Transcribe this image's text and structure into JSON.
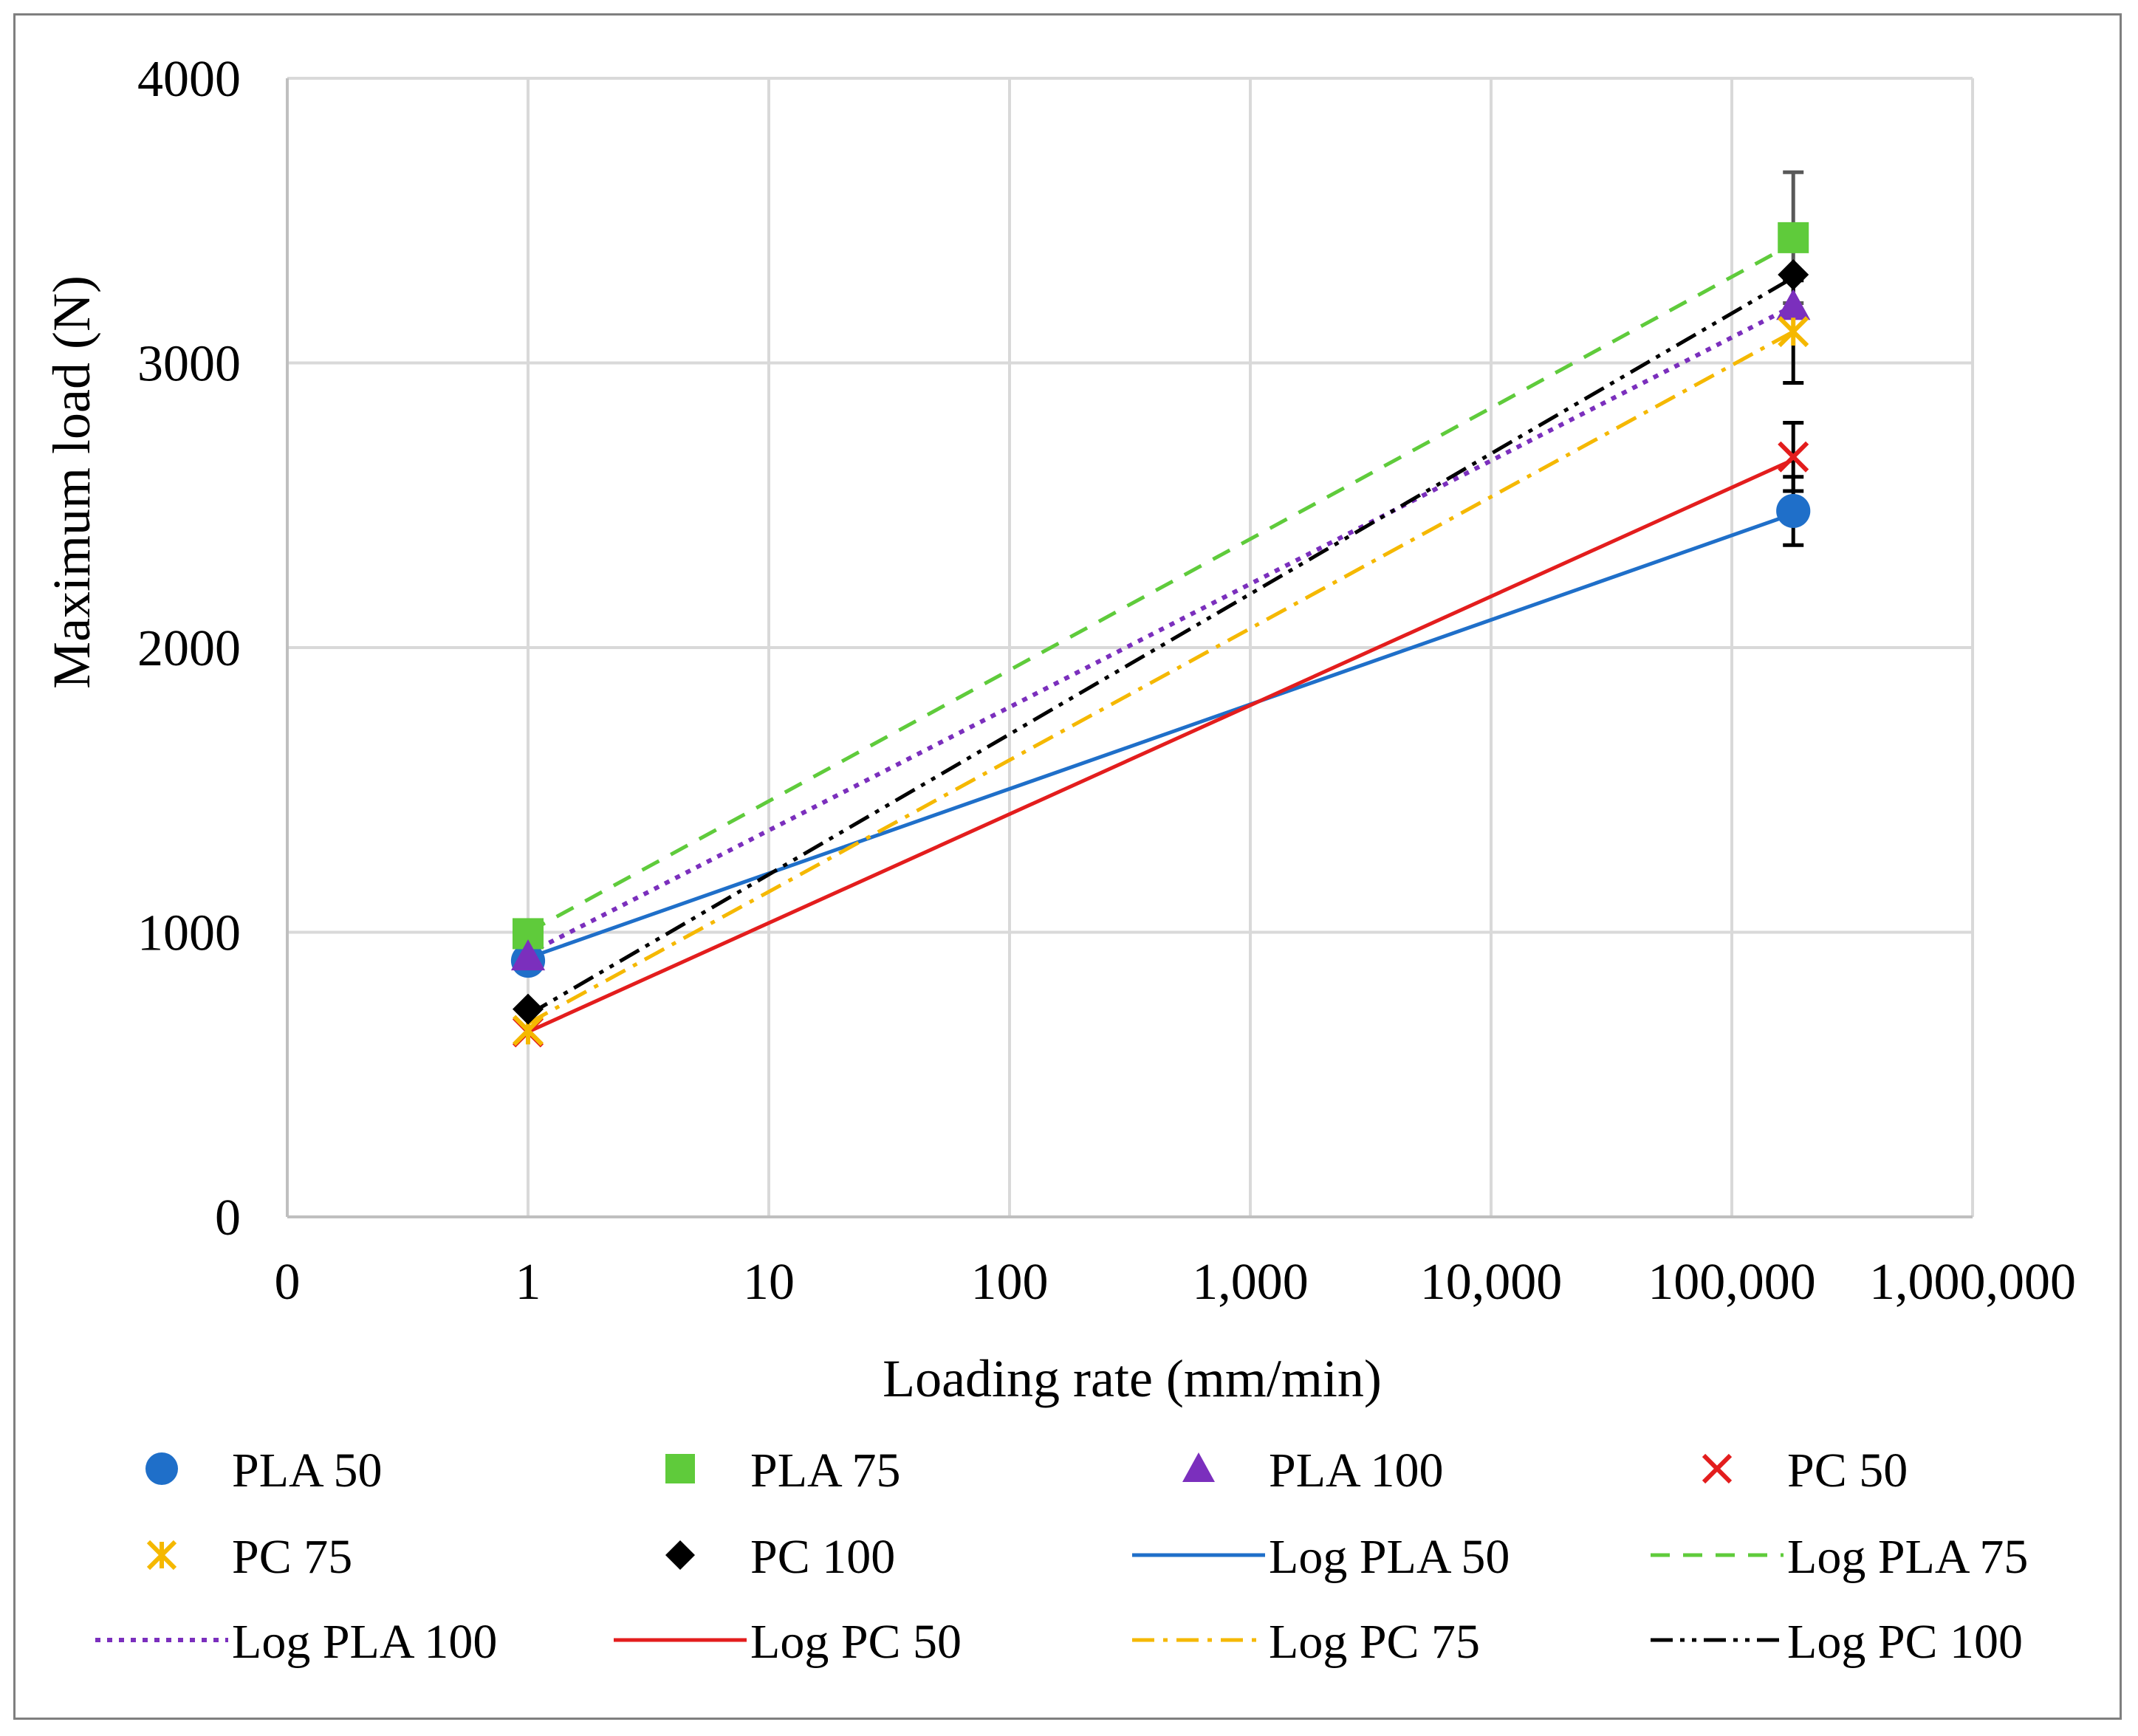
{
  "chart_data": {
    "type": "scatter",
    "x_scale": "log",
    "xlabel": "Loading rate (mm/min)",
    "ylabel": "Maximum load (N)",
    "ylim": [
      0,
      4000
    ],
    "xlim": [
      0.1,
      1000000
    ],
    "grid": true,
    "legend_position": "bottom",
    "x_ticks": [
      {
        "value": 0.1,
        "label": "0"
      },
      {
        "value": 1,
        "label": "1"
      },
      {
        "value": 10,
        "label": "10"
      },
      {
        "value": 100,
        "label": "100"
      },
      {
        "value": 1000,
        "label": "1,000"
      },
      {
        "value": 10000,
        "label": "10,000"
      },
      {
        "value": 100000,
        "label": "100,000"
      },
      {
        "value": 1000000,
        "label": "1,000,000"
      }
    ],
    "y_ticks": [
      {
        "value": 0,
        "label": "0"
      },
      {
        "value": 1000,
        "label": "1000"
      },
      {
        "value": 2000,
        "label": "2000"
      },
      {
        "value": 3000,
        "label": "3000"
      },
      {
        "value": 4000,
        "label": "4000"
      }
    ],
    "series": [
      {
        "name": "PLA 50",
        "marker": "circle",
        "color": "#1f6fc9",
        "x": [
          1,
          180000
        ],
        "y": [
          900,
          2480
        ],
        "err": [
          0,
          120
        ]
      },
      {
        "name": "PLA 75",
        "marker": "square",
        "color": "#5fcb3b",
        "x": [
          1,
          180000
        ],
        "y": [
          995,
          3440
        ],
        "err": [
          0,
          230
        ]
      },
      {
        "name": "PLA 100",
        "marker": "triangle",
        "color": "#7b2fbd",
        "x": [
          1,
          180000
        ],
        "y": [
          915,
          3200
        ],
        "err": [
          0,
          0
        ]
      },
      {
        "name": "PC 50",
        "marker": "x",
        "color": "#e31d1d",
        "x": [
          1,
          180000
        ],
        "y": [
          650,
          2670
        ],
        "err": [
          0,
          120
        ]
      },
      {
        "name": "PC 75",
        "marker": "asterisk",
        "color": "#f5b800",
        "x": [
          1,
          180000
        ],
        "y": [
          655,
          3110
        ],
        "err": [
          0,
          180
        ]
      },
      {
        "name": "PC 100",
        "marker": "diamond",
        "color": "#000000",
        "x": [
          1,
          180000
        ],
        "y": [
          730,
          3310
        ],
        "err": [
          0,
          0
        ]
      }
    ],
    "trendlines": [
      {
        "name": "Log PLA 50",
        "color": "#1f6fc9",
        "dash": "solid",
        "x": [
          1,
          180000
        ],
        "y": [
          910,
          2470
        ]
      },
      {
        "name": "Log PLA 75",
        "color": "#5fcb3b",
        "dash": "dash",
        "x": [
          1,
          180000
        ],
        "y": [
          1000,
          3420
        ]
      },
      {
        "name": "Log PLA 100",
        "color": "#7b2fbd",
        "dash": "dot",
        "x": [
          1,
          180000
        ],
        "y": [
          925,
          3200
        ]
      },
      {
        "name": "Log PC 50",
        "color": "#e31d1d",
        "dash": "solid",
        "x": [
          1,
          180000
        ],
        "y": [
          650,
          2660
        ]
      },
      {
        "name": "Log PC 75",
        "color": "#f5b800",
        "dash": "dashdot",
        "x": [
          1,
          180000
        ],
        "y": [
          680,
          3110
        ]
      },
      {
        "name": "Log PC 100",
        "color": "#000000",
        "dash": "dashdotdot",
        "x": [
          1,
          180000
        ],
        "y": [
          710,
          3300
        ]
      }
    ],
    "legend": [
      {
        "label": "PLA 50",
        "kind": "marker",
        "ref": "PLA 50"
      },
      {
        "label": "PLA 75",
        "kind": "marker",
        "ref": "PLA 75"
      },
      {
        "label": "PLA 100",
        "kind": "marker",
        "ref": "PLA 100"
      },
      {
        "label": "PC 50",
        "kind": "marker",
        "ref": "PC 50"
      },
      {
        "label": "PC 75",
        "kind": "marker",
        "ref": "PC 75"
      },
      {
        "label": "PC 100",
        "kind": "marker",
        "ref": "PC 100"
      },
      {
        "label": "Log PLA 50",
        "kind": "line",
        "ref": "Log PLA 50"
      },
      {
        "label": "Log PLA 75",
        "kind": "line",
        "ref": "Log PLA 75"
      },
      {
        "label": "Log PLA 100",
        "kind": "line",
        "ref": "Log PLA 100"
      },
      {
        "label": "Log PC 50",
        "kind": "line",
        "ref": "Log PC 50"
      },
      {
        "label": "Log PC 75",
        "kind": "line",
        "ref": "Log PC 75"
      },
      {
        "label": "Log PC 100",
        "kind": "line",
        "ref": "Log PC 100"
      }
    ]
  }
}
